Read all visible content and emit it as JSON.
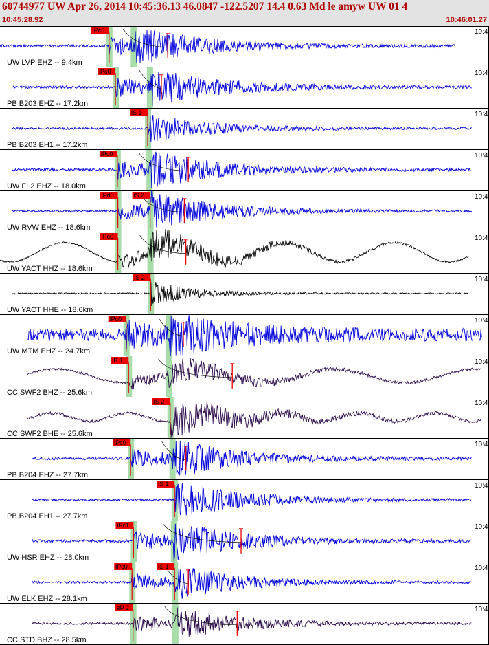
{
  "header": {
    "title": "60744977 UW Apr 26, 2014 10:45:36.13    46.0847 -122.5207 14.4 0.63 Md le amyw UW 01   4",
    "start_time": "10:45:28.92",
    "end_time": "10:46:01.27"
  },
  "colors": {
    "header_bg": "#e3e3e3",
    "header_text": "#b00000",
    "trace_blue": "#0000dd",
    "trace_black": "#000000",
    "trace_purple": "#2a0a4a",
    "pick_marker": "#ee0000",
    "pick_window": "#a8dca8"
  },
  "panel_time_label": "10:4",
  "traces": [
    {
      "label": "UW LVP EHZ -- 9.4km",
      "color": "blue",
      "style": "normal",
      "pick": "iPc0",
      "pick_t": 0.223,
      "s_t": 0.273,
      "amp_t": 0.343,
      "noise": 2,
      "amp": 22,
      "start": 0.0,
      "end": 0.93
    },
    {
      "label": "PB B203 EHZ -- 17.2km",
      "color": "blue",
      "style": "normal",
      "pick": "iPc0",
      "pick_t": 0.236,
      "s_t": 0.306,
      "amp_t": 0.33,
      "noise": 2,
      "amp": 22,
      "start": 0.025,
      "end": 0.965
    },
    {
      "label": "PB B203 EH1 -- 17.2km",
      "color": "blue",
      "style": "normal",
      "pick": "iS 1",
      "pick_t": 0.302,
      "s_t": 0.302,
      "amp_t": 0.0,
      "noise": 1.5,
      "amp": 13,
      "start": 0.025,
      "end": 0.965
    },
    {
      "label": "UW FL2 EHZ -- 18.0km",
      "color": "blue",
      "style": "normal",
      "pick": "iPc0",
      "pick_t": 0.24,
      "s_t": 0.305,
      "amp_t": 0.385,
      "noise": 2,
      "amp": 22,
      "start": 0.025,
      "end": 0.965
    },
    {
      "label": "UW RVW EHZ -- 18.6km",
      "color": "blue",
      "style": "normal",
      "pick": "iPd0",
      "pick_t": 0.241,
      "s_t": 0.307,
      "amp_t": 0.377,
      "noise": 1.5,
      "amp": 22,
      "start": 0.025,
      "end": 0.965,
      "pick2": "iS 2"
    },
    {
      "label": "UW YACT HHZ -- 18.6km",
      "color": "black",
      "style": "wave",
      "pick": "iPc0",
      "pick_t": 0.241,
      "s_t": 0.307,
      "amp_t": 0.38,
      "noise": 1,
      "amp": 20,
      "start": 0.0,
      "end": 0.96
    },
    {
      "label": "UW YACT HHE -- 18.6km",
      "color": "black",
      "style": "flat",
      "pick": "iS 2",
      "pick_t": 0.308,
      "s_t": 0.308,
      "amp_t": 0.0,
      "noise": 1,
      "amp": 18,
      "start": 0.025,
      "end": 0.96
    },
    {
      "label": "UW MTM EHZ -- 24.7km",
      "color": "blue",
      "style": "noisy",
      "pick": "iPc0",
      "pick_t": 0.258,
      "s_t": 0.345,
      "amp_t": 0.375,
      "noise": 10,
      "amp": 22,
      "start": 0.055,
      "end": 0.985
    },
    {
      "label": "CC SWF2 BHZ -- 25.6km",
      "color": "purple",
      "style": "wave2",
      "pick": "iP 1",
      "pick_t": 0.263,
      "s_t": 0.345,
      "amp_t": 0.475,
      "noise": 1.5,
      "amp": 16,
      "start": 0.055,
      "end": 0.985
    },
    {
      "label": "CC SWF2 BHE -- 25.6km",
      "color": "purple",
      "style": "wave3",
      "pick": "iS 2",
      "pick_t": 0.348,
      "s_t": 0.348,
      "amp_t": 0.0,
      "noise": 2,
      "amp": 18,
      "start": 0.055,
      "end": 0.985
    },
    {
      "label": "PB B204 EHZ -- 27.7km",
      "color": "blue",
      "style": "normal",
      "pick": "iPc0",
      "pick_t": 0.267,
      "s_t": 0.352,
      "amp_t": 0.38,
      "noise": 2,
      "amp": 22,
      "start": 0.065,
      "end": 0.965
    },
    {
      "label": "PB B204 EH1 -- 27.7km",
      "color": "blue",
      "style": "normal",
      "pick": "iS 1",
      "pick_t": 0.357,
      "s_t": 0.357,
      "amp_t": 0.0,
      "noise": 1.5,
      "amp": 18,
      "start": 0.065,
      "end": 0.965
    },
    {
      "label": "UW HSR EHZ -- 28.0km",
      "color": "blue",
      "style": "normal",
      "pick": "iPc1",
      "pick_t": 0.273,
      "s_t": 0.355,
      "amp_t": 0.493,
      "noise": 2,
      "amp": 22,
      "start": 0.065,
      "end": 0.965
    },
    {
      "label": "UW ELK EHZ -- 28.1km",
      "color": "blue",
      "style": "normal",
      "pick": "iPc0",
      "pick_t": 0.27,
      "s_t": 0.357,
      "amp_t": 0.385,
      "noise": 1.5,
      "amp": 20,
      "start": 0.065,
      "end": 0.965,
      "pick2": "iS 1"
    },
    {
      "label": "CC STD BHZ -- 28.5km",
      "color": "purple",
      "style": "normal",
      "pick": "eP 2",
      "pick_t": 0.272,
      "s_t": 0.358,
      "amp_t": 0.485,
      "noise": 1.5,
      "amp": 18,
      "start": 0.065,
      "end": 0.965
    }
  ]
}
